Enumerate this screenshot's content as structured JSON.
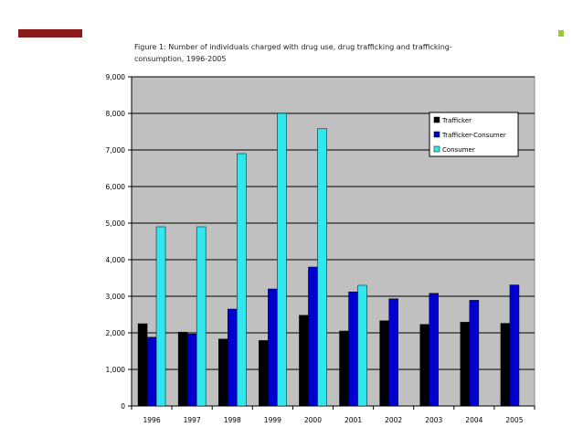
{
  "decor": {
    "accent_color": "#8b1a1a",
    "marker_color": "#99cc33"
  },
  "chart_data": {
    "type": "bar",
    "title": "Figure 1: Number of individuals charged with drug use, drug trafficking and trafficking-consumption, 1996-2005",
    "xlabel": "",
    "ylabel": "",
    "categories": [
      "1996",
      "1997",
      "1998",
      "1999",
      "2000",
      "2001",
      "2002",
      "2003",
      "2004",
      "2005"
    ],
    "series": [
      {
        "name": "Trafficker",
        "color": "#000000",
        "values": [
          2250,
          2020,
          1830,
          1790,
          2480,
          2050,
          2330,
          2230,
          2290,
          2260
        ]
      },
      {
        "name": "Trafficker-Consumer",
        "color": "#0000cc",
        "values": [
          1880,
          1970,
          2650,
          3200,
          3800,
          3120,
          2930,
          3080,
          2890,
          3310
        ]
      },
      {
        "name": "Consumer",
        "color": "#33e6ee",
        "values": [
          4900,
          4900,
          6900,
          8000,
          7580,
          3300,
          null,
          null,
          null,
          null
        ]
      }
    ],
    "ylim": [
      0,
      9000
    ],
    "yticks": [
      0,
      1000,
      2000,
      3000,
      4000,
      5000,
      6000,
      7000,
      8000,
      9000
    ],
    "ytick_labels": [
      "0",
      "1,000",
      "2,000",
      "3,000",
      "4,000",
      "5,000",
      "6,000",
      "7,000",
      "8,000",
      "9,000"
    ],
    "grid": true,
    "plot_background": "#c0c0c0",
    "legend_position": "top-right"
  }
}
